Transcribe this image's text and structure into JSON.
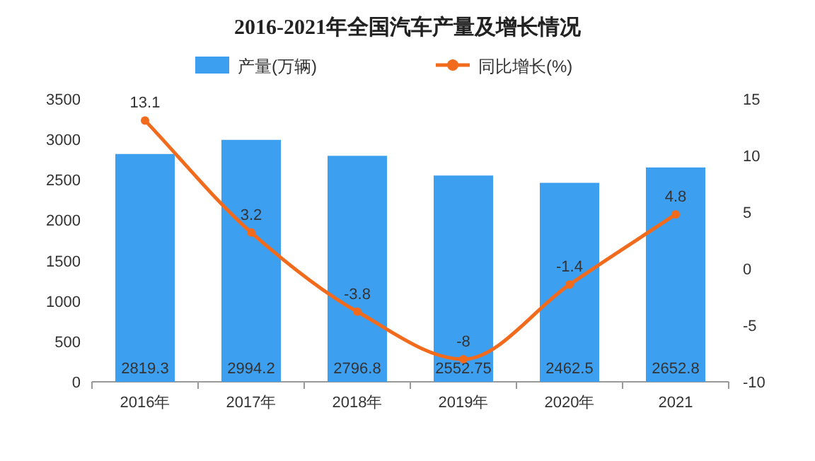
{
  "chart_data": {
    "type": "bar",
    "title": "2016-2021年全国汽车产量及增长情况",
    "categories": [
      "2016年",
      "2017年",
      "2018年",
      "2019年",
      "2020年",
      "2021"
    ],
    "series": [
      {
        "name": "产量(万辆)",
        "color": "#3d9ff0",
        "values": [
          2819.3,
          2994.2,
          2796.8,
          2552.75,
          2462.5,
          2652.8
        ]
      },
      {
        "name": "同比增长(%)",
        "type": "line",
        "axis": "y2",
        "color": "#f26b1d",
        "values": [
          13.1,
          3.2,
          -3.8,
          -8,
          -1.4,
          4.8
        ]
      }
    ],
    "ylim": [
      0,
      3500
    ],
    "yticks": [
      0,
      500,
      1000,
      1500,
      2000,
      2500,
      3000,
      3500
    ],
    "y2lim": [
      -10,
      15
    ],
    "y2ticks": [
      -10,
      -5,
      0,
      5,
      10,
      15
    ],
    "legend": "top",
    "data_labels": true,
    "marker": "circle"
  }
}
